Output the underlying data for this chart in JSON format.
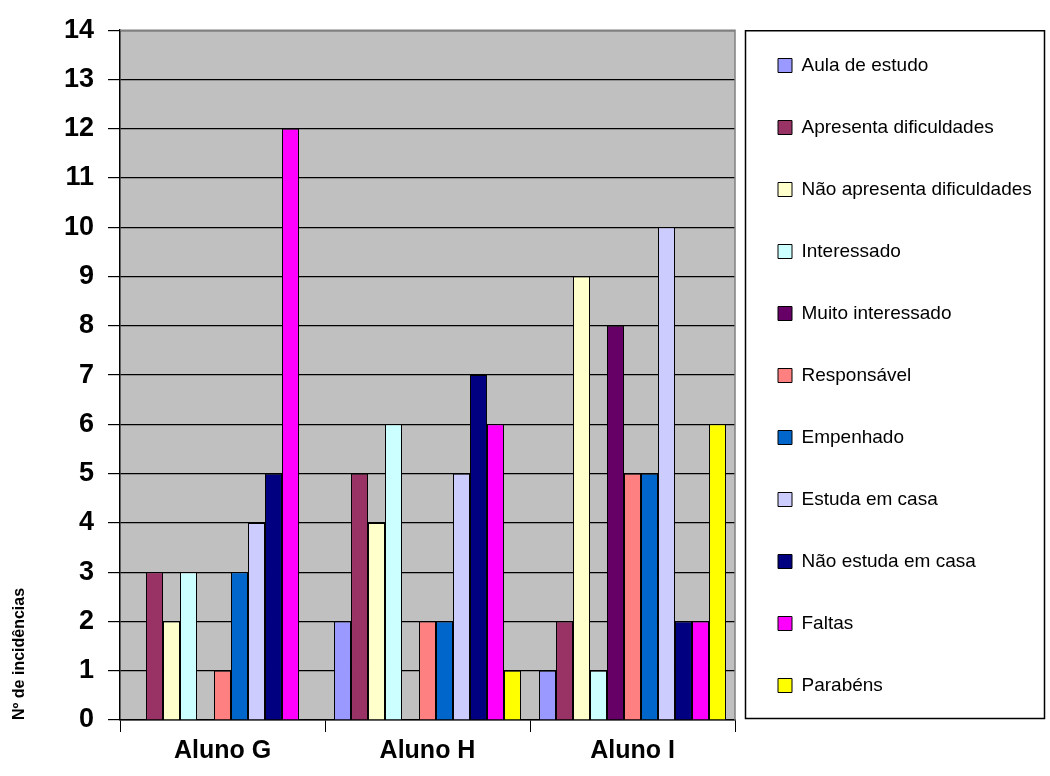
{
  "chart_data": {
    "type": "bar",
    "ylabel": "Nº de incidências",
    "categories": [
      "Aluno G",
      "Aluno H",
      "Aluno I"
    ],
    "series": [
      {
        "name": "Aula de estudo",
        "color": "#9999ff",
        "values": [
          0,
          2,
          1
        ]
      },
      {
        "name": "Apresenta dificuldades",
        "color": "#993366",
        "values": [
          3,
          5,
          2
        ]
      },
      {
        "name": "Não apresenta dificuldades",
        "color": "#ffffcc",
        "values": [
          2,
          4,
          9
        ]
      },
      {
        "name": "Interessado",
        "color": "#ccffff",
        "values": [
          3,
          6,
          1
        ]
      },
      {
        "name": "Muito interessado",
        "color": "#660066",
        "values": [
          0,
          0,
          8
        ]
      },
      {
        "name": "Responsável",
        "color": "#ff8080",
        "values": [
          1,
          2,
          5
        ]
      },
      {
        "name": "Empenhado",
        "color": "#0066cc",
        "values": [
          3,
          2,
          5
        ]
      },
      {
        "name": "Estuda em casa",
        "color": "#ccccff",
        "values": [
          4,
          5,
          10
        ]
      },
      {
        "name": "Não estuda em casa",
        "color": "#000080",
        "values": [
          5,
          7,
          2
        ]
      },
      {
        "name": "Faltas",
        "color": "#ff00ff",
        "values": [
          12,
          6,
          2
        ]
      },
      {
        "name": "Parabéns",
        "color": "#ffff00",
        "values": [
          0,
          1,
          6
        ]
      }
    ],
    "ylim": [
      0,
      14
    ],
    "yticks": [
      0,
      1,
      2,
      3,
      4,
      5,
      6,
      7,
      8,
      9,
      10,
      11,
      12,
      13,
      14
    ],
    "grid": "y",
    "legend": "right"
  }
}
